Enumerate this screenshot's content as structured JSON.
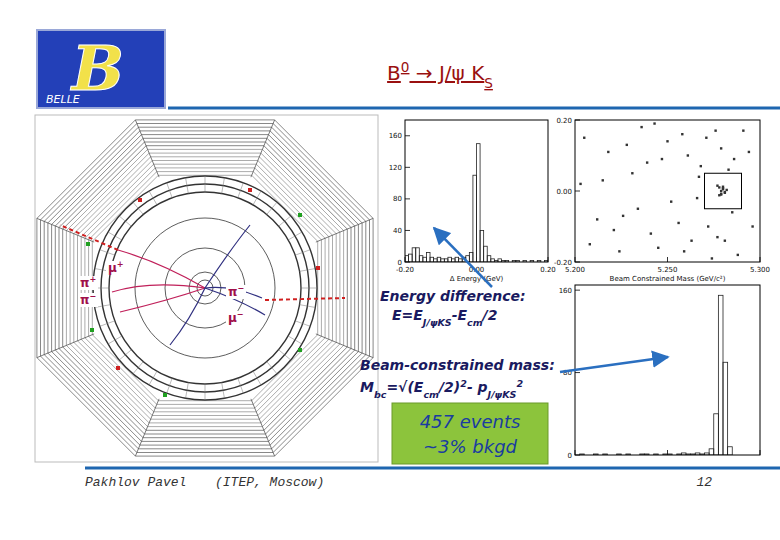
{
  "slide": {
    "logo": {
      "mark": "B",
      "name": "BELLE"
    },
    "title": [
      {
        "text": "B"
      },
      {
        "text": "0",
        "style": "sup"
      },
      {
        "text": " → J/ψ K"
      },
      {
        "text": "S",
        "style": "sub"
      }
    ],
    "event_display_labels": [
      [
        {
          "text": "μ"
        },
        {
          "text": "+",
          "style": "sup"
        }
      ],
      [
        {
          "text": "π"
        },
        {
          "text": "+",
          "style": "sup"
        }
      ],
      [
        {
          "text": "π"
        },
        {
          "text": "−",
          "style": "sup"
        }
      ],
      [
        {
          "text": "π"
        },
        {
          "text": "−",
          "style": "sup"
        }
      ],
      [
        {
          "text": "μ"
        },
        {
          "text": "−",
          "style": "sup"
        }
      ]
    ],
    "annotations": [
      {
        "lines": [
          [
            {
              "text": "Energy difference:"
            }
          ],
          [
            {
              "text": "E=E"
            },
            {
              "text": "J/ψKS",
              "style": "sub"
            },
            {
              "text": "-E"
            },
            {
              "text": "cm",
              "style": "sub"
            },
            {
              "text": "/2"
            }
          ]
        ]
      },
      {
        "lines": [
          [
            {
              "text": "Beam-constrained mass:"
            }
          ],
          [
            {
              "text": "M"
            },
            {
              "text": "bc",
              "style": "sub"
            },
            {
              "text": "=√(E"
            },
            {
              "text": "cm",
              "style": "sub"
            },
            {
              "text": "/2)"
            },
            {
              "text": "2",
              "style": "sup"
            },
            {
              "text": "- p"
            },
            {
              "text": "J/ψKS",
              "style": "sub"
            },
            {
              "text": "2",
              "style": "sup"
            }
          ]
        ]
      }
    ],
    "summary_box": [
      "457 events",
      "~3% bkgd"
    ],
    "footer_author": "Pakhlov Pavel",
    "footer_affiliation": "(ITEP, Moscow)",
    "page_number": 12
  },
  "chart_data": [
    {
      "type": "histogram",
      "xlabel": "Δ Energy (GeV)",
      "color": "#222222",
      "bins": [
        -0.2,
        -0.19,
        -0.18,
        -0.17,
        -0.16,
        -0.15,
        -0.14,
        -0.13,
        -0.12,
        -0.11,
        -0.1,
        -0.09,
        -0.08,
        -0.07,
        -0.06,
        -0.05,
        -0.04,
        -0.03,
        -0.02,
        -0.01,
        0,
        0.01,
        0.02,
        0.03,
        0.04,
        0.05,
        0.06,
        0.07,
        0.08,
        0.09,
        0.1,
        0.11,
        0.12,
        0.13,
        0.14,
        0.15,
        0.16,
        0.17,
        0.18,
        0.19,
        0.2
      ],
      "counts": [
        8,
        10,
        18,
        18,
        8,
        6,
        12,
        6,
        4,
        6,
        4,
        4,
        6,
        4,
        6,
        4,
        6,
        8,
        12,
        110,
        150,
        40,
        20,
        8,
        4,
        2,
        4,
        2,
        2,
        0,
        2,
        2,
        0,
        2,
        0,
        2,
        0,
        2,
        0,
        2
      ],
      "xlim": [
        -0.2,
        0.2
      ],
      "xticks": [
        {
          "value": -0.2,
          "label": "-0.20"
        },
        {
          "value": 0,
          "label": "0.00"
        },
        {
          "value": 0.2,
          "label": "0.20"
        }
      ],
      "ylim": [
        0,
        180
      ],
      "yticks": [
        0,
        40,
        80,
        120,
        160
      ],
      "grid": false
    },
    {
      "type": "scatter",
      "xlabel": "Beam Constrained Mass (GeV/c²)",
      "color": "#333333",
      "marker": "square",
      "x": [
        5.205,
        5.212,
        5.218,
        5.224,
        5.231,
        5.236,
        5.241,
        5.247,
        5.252,
        5.258,
        5.263,
        5.268,
        5.274,
        5.279,
        5.285,
        5.291,
        5.296,
        5.208,
        5.215,
        5.221,
        5.228,
        5.234,
        5.239,
        5.245,
        5.25,
        5.256,
        5.261,
        5.266,
        5.271,
        5.277,
        5.283,
        5.288,
        5.294,
        5.203,
        5.226,
        5.243,
        5.259,
        5.267,
        5.272,
        5.276,
        5.281,
        5.286,
        5.278,
        5.279,
        5.28,
        5.281,
        5.279,
        5.28,
        5.278,
        5.282,
        5.279,
        5.28,
        5.281,
        5.277
      ],
      "values": [
        0.15,
        -0.08,
        0.11,
        -0.17,
        0.05,
        0.18,
        -0.12,
        0.09,
        -0.03,
        0.16,
        -0.14,
        0.07,
        -0.19,
        0.12,
        -0.06,
        0.17,
        -0.1,
        -0.15,
        0.03,
        -0.11,
        0.13,
        -0.05,
        0.08,
        -0.16,
        0.14,
        -0.09,
        0.1,
        -0.02,
        0.15,
        -0.13,
        0.06,
        -0.18,
        0.11,
        0.02,
        -0.07,
        0.19,
        -0.17,
        0.04,
        -0.1,
        0.17,
        -0.14,
        0.09,
        0.01,
        -0.01,
        0.005,
        -0.005,
        0,
        0.012,
        -0.012,
        0.003,
        -0.008,
        0.008,
        -0.003,
        0.015
      ],
      "region": {
        "x": [
          5.27,
          5.29
        ],
        "y": [
          -0.05,
          0.05
        ]
      },
      "xlim": [
        5.2,
        5.3
      ],
      "xticks": [
        {
          "value": 5.2,
          "label": "5.200"
        },
        {
          "value": 5.25,
          "label": "5.250"
        },
        {
          "value": 5.3,
          "label": "5.300"
        }
      ],
      "ylim": [
        -0.2,
        0.2
      ],
      "yticks": [
        {
          "value": -0.2,
          "label": "-0.20"
        },
        {
          "value": 0,
          "label": "0.00"
        },
        {
          "value": 0.2,
          "label": "0.20"
        }
      ],
      "grid": false
    },
    {
      "type": "histogram",
      "color": "#222222",
      "bins": [
        5.2,
        5.2025,
        5.205,
        5.2075,
        5.21,
        5.2125,
        5.215,
        5.2175,
        5.22,
        5.2225,
        5.225,
        5.2275,
        5.23,
        5.2325,
        5.235,
        5.2375,
        5.24,
        5.2425,
        5.245,
        5.2475,
        5.25,
        5.2525,
        5.255,
        5.2575,
        5.26,
        5.2625,
        5.265,
        5.2675,
        5.27,
        5.2725,
        5.275,
        5.2775,
        5.28,
        5.2825,
        5.285,
        5.2875,
        5.29,
        5.2925,
        5.295,
        5.2975,
        5.3
      ],
      "counts": [
        0,
        1,
        0,
        0,
        1,
        0,
        1,
        0,
        0,
        1,
        0,
        1,
        0,
        0,
        1,
        1,
        0,
        1,
        0,
        1,
        1,
        0,
        1,
        2,
        1,
        1,
        2,
        1,
        2,
        6,
        40,
        155,
        90,
        8,
        0,
        0,
        0,
        0,
        0,
        0
      ],
      "xlim": [
        5.2,
        5.3
      ],
      "xticks": [
        5.2,
        5.25,
        5.3
      ],
      "ylim": [
        0,
        165
      ],
      "yticks": [
        0,
        80,
        160
      ],
      "tick_labels": "y",
      "grid": false
    }
  ]
}
